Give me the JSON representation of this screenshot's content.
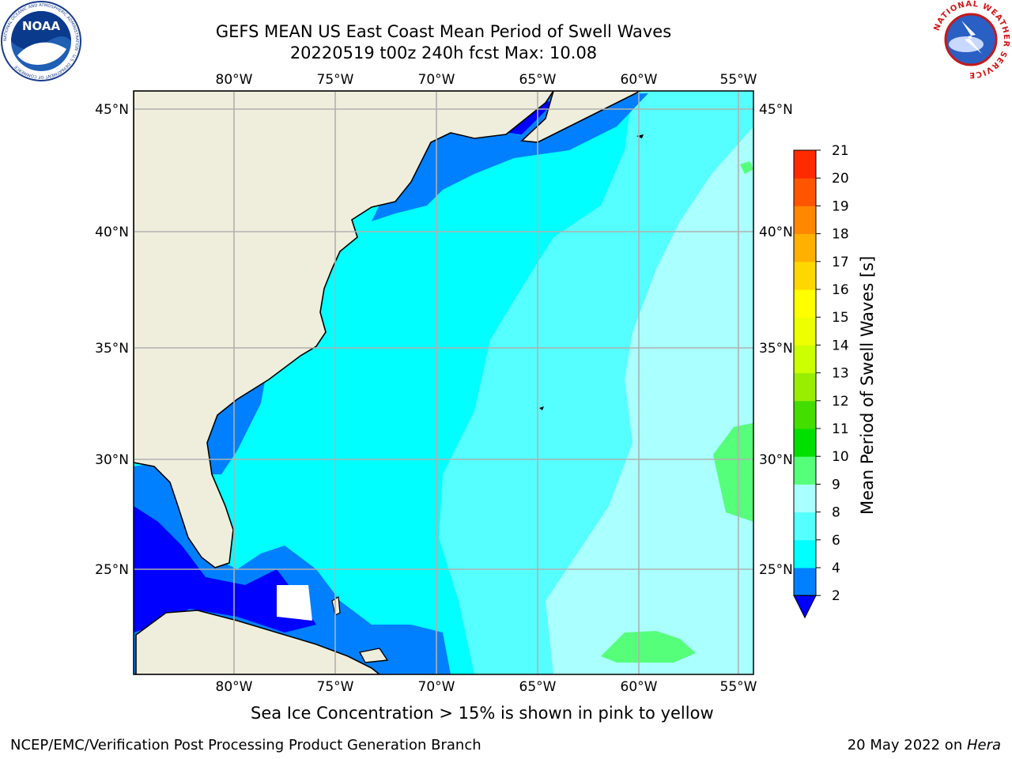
{
  "header": {
    "title_line1": "GEFS MEAN US East Coast Mean Period of Swell Waves",
    "title_line2": "20220519 t00z 240h fcst   Max: 10.08",
    "left_logo": "noaa-logo",
    "right_logo": "national-weather-service-logo",
    "noaa_logo_text": "NOAA",
    "noaa_ring_text": "NATIONAL OCEANIC AND ATMOSPHERIC ADMINISTRATION · U.S. DEPARTMENT OF COMMERCE",
    "nws_ring_text": "NATIONAL WEATHER SERVICE"
  },
  "map": {
    "longitude_labels": [
      "80°W",
      "75°W",
      "70°W",
      "65°W",
      "60°W",
      "55°W"
    ],
    "latitude_labels": [
      "45°N",
      "40°N",
      "35°N",
      "30°N",
      "25°N"
    ],
    "extent": {
      "lon_min": -85,
      "lon_max": -54.3,
      "lat_min": 20.5,
      "lat_max": 45.8
    },
    "gridlines": true,
    "land_color": "#efeedc",
    "grid_color": "#b0b0b0",
    "field_description_colors": {
      "dark_blue": "#0000ff",
      "blue": "#0080ff",
      "cyan": "#00ffff",
      "light_cyan": "#55ffff",
      "pale_cyan": "#aaffff",
      "light_green": "#55ff7a"
    }
  },
  "colorbar": {
    "label": "Mean Period of Swell Waves [s]",
    "ticks": [
      "2",
      "4",
      "6",
      "8",
      "9",
      "10",
      "11",
      "12",
      "13",
      "14",
      "15",
      "16",
      "17",
      "18",
      "19",
      "20",
      "21"
    ],
    "extend_color": "#0000ff",
    "colors": [
      "#0080ff",
      "#00ffff",
      "#55ffff",
      "#aaffff",
      "#55ff7a",
      "#00e000",
      "#44dd00",
      "#99ee00",
      "#ccff00",
      "#eeff00",
      "#ffff00",
      "#ffd700",
      "#ffb000",
      "#ff8800",
      "#ff5500",
      "#ff2a00",
      "#ff0000"
    ]
  },
  "footer": {
    "note": "Sea Ice Concentration > 15% is shown in pink to yellow",
    "credit": "NCEP/EMC/Verification Post Processing Product Generation Branch",
    "date": "20 May 2022 on ",
    "machine": "Hera"
  }
}
